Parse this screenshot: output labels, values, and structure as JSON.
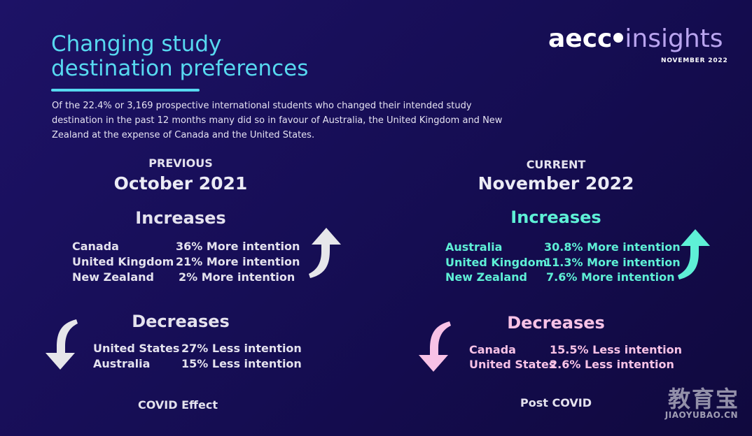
{
  "header": {
    "title_line1": "Changing study",
    "title_line2": "destination preferences",
    "intro": "Of the 22.4% or 3,169 prospective international students who changed their intended study destination in the past 12 months many did so in favour of Australia, the United Kingdom and New Zealand at the expense of Canada and the United States."
  },
  "logo": {
    "brand": "aecc",
    "suffix": "insights",
    "date": "NOVEMBER 2022"
  },
  "previous": {
    "eyebrow": "PREVIOUS",
    "date": "October 2021",
    "increases_heading": "Increases",
    "increases": [
      {
        "country": "Canada",
        "value": "36% More intention"
      },
      {
        "country": "United Kingdom",
        "value": "21% More intention"
      },
      {
        "country": "New Zealand",
        "value": "2% More intention"
      }
    ],
    "decreases_heading": "Decreases",
    "decreases": [
      {
        "country": "United States",
        "value": "27% Less intention"
      },
      {
        "country": "Australia",
        "value": "15% Less intention"
      }
    ],
    "footer": "COVID Effect"
  },
  "current": {
    "eyebrow": "CURRENT",
    "date": "November 2022",
    "increases_heading": "Increases",
    "increases": [
      {
        "country": "Australia",
        "value": "30.8% More intention"
      },
      {
        "country": "United Kingdom",
        "value": "11.3% More intention"
      },
      {
        "country": "New Zealand",
        "value": "7.6% More intention"
      }
    ],
    "decreases_heading": "Decreases",
    "decreases": [
      {
        "country": "Canada",
        "value": "15.5% Less intention"
      },
      {
        "country": "United States",
        "value": "2.6% Less intention"
      }
    ],
    "footer": "Post COVID"
  },
  "icons": {
    "prev_up": "curved-up-arrow-icon",
    "prev_down": "curved-down-arrow-icon",
    "cur_up": "curved-up-arrow-icon",
    "cur_down": "curved-down-arrow-icon"
  },
  "colors": {
    "background": "#150d52",
    "title": "#57d9f0",
    "increase_current": "#5ef0d6",
    "decrease_current": "#f8c2e6",
    "previous_text": "#e4e2ee",
    "logo_accent": "#b9a4ef"
  },
  "watermark": {
    "cn": "教育宝",
    "en": "JIAOYUBAO.CN"
  }
}
